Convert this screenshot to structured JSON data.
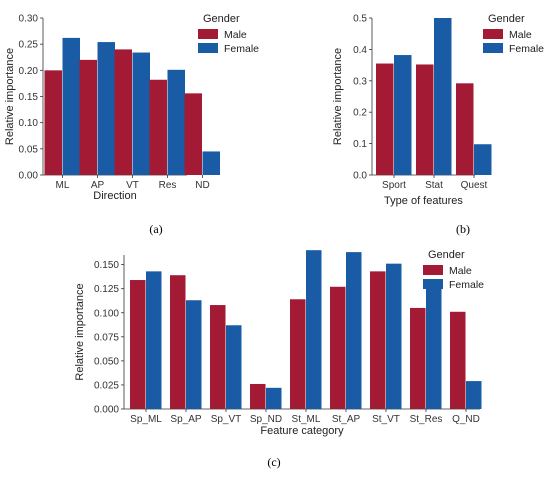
{
  "chart_data": [
    {
      "id": "a",
      "type": "bar",
      "panel_label": "(a)",
      "xlabel": "Direction",
      "ylabel": "Relative importance",
      "categories": [
        "ML",
        "AP",
        "VT",
        "Res",
        "ND"
      ],
      "ylim": [
        0,
        0.3
      ],
      "yticks": [
        0.0,
        0.05,
        0.1,
        0.15,
        0.2,
        0.25,
        0.3
      ],
      "ytick_labels": [
        "0.00",
        "0.05",
        "0.10",
        "0.15",
        "0.20",
        "0.25",
        "0.30"
      ],
      "grid": false,
      "legend": {
        "title": "Gender",
        "placement": "top-right"
      },
      "series": [
        {
          "name": "Male",
          "color": "#A31A35",
          "values": [
            0.2,
            0.22,
            0.24,
            0.182,
            0.156
          ]
        },
        {
          "name": "Female",
          "color": "#1A5BA6",
          "values": [
            0.262,
            0.254,
            0.234,
            0.201,
            0.045
          ]
        }
      ]
    },
    {
      "id": "b",
      "type": "bar",
      "panel_label": "(b)",
      "xlabel": "Type of features",
      "ylabel": "Relative importance",
      "categories": [
        "Sport",
        "Stat",
        "Quest"
      ],
      "ylim": [
        0,
        0.5
      ],
      "yticks": [
        0.0,
        0.1,
        0.2,
        0.3,
        0.4,
        0.5
      ],
      "ytick_labels": [
        "0.0",
        "0.1",
        "0.2",
        "0.3",
        "0.4",
        "0.5"
      ],
      "grid": false,
      "legend": {
        "title": "Gender",
        "placement": "top-right"
      },
      "series": [
        {
          "name": "Male",
          "color": "#A31A35",
          "values": [
            0.355,
            0.352,
            0.292
          ]
        },
        {
          "name": "Female",
          "color": "#1A5BA6",
          "values": [
            0.382,
            0.5,
            0.098
          ]
        }
      ]
    },
    {
      "id": "c",
      "type": "bar",
      "panel_label": "(c)",
      "xlabel": "Feature category",
      "ylabel": "Relative importance",
      "categories": [
        "Sp_ML",
        "Sp_AP",
        "Sp_VT",
        "Sp_ND",
        "St_ML",
        "St_AP",
        "St_VT",
        "St_Res",
        "Q_ND"
      ],
      "ylim": [
        0,
        0.16
      ],
      "yticks": [
        0.0,
        0.025,
        0.05,
        0.075,
        0.1,
        0.125,
        0.15
      ],
      "ytick_labels": [
        "0.000",
        "0.025",
        "0.050",
        "0.075",
        "0.100",
        "0.125",
        "0.150"
      ],
      "grid": false,
      "legend": {
        "title": "Gender",
        "placement": "top-right"
      },
      "series": [
        {
          "name": "Male",
          "color": "#A31A35",
          "values": [
            0.134,
            0.139,
            0.108,
            0.026,
            0.114,
            0.127,
            0.143,
            0.105,
            0.101
          ]
        },
        {
          "name": "Female",
          "color": "#1A5BA6",
          "values": [
            0.143,
            0.113,
            0.087,
            0.022,
            0.165,
            0.163,
            0.151,
            0.125,
            0.029
          ]
        }
      ]
    }
  ]
}
